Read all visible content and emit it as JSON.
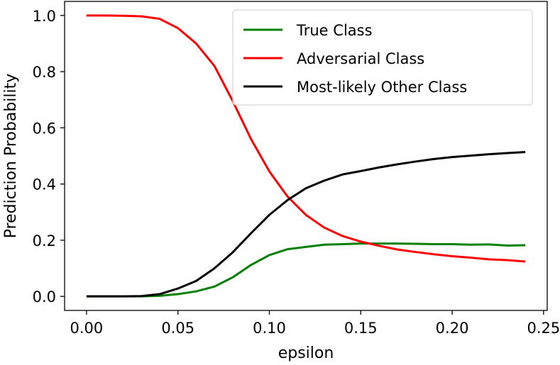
{
  "chart_data": {
    "type": "line",
    "title": "",
    "xlabel": "epsilon",
    "ylabel": "Prediction Probability",
    "xlim": [
      -0.012,
      0.252
    ],
    "ylim": [
      -0.05,
      1.05
    ],
    "xticks": [
      0.0,
      0.05,
      0.1,
      0.15,
      0.2,
      0.25
    ],
    "xtick_labels": [
      "0.00",
      "0.05",
      "0.10",
      "0.15",
      "0.20",
      "0.25"
    ],
    "yticks": [
      0.0,
      0.2,
      0.4,
      0.6,
      0.8,
      1.0
    ],
    "ytick_labels": [
      "0.0",
      "0.2",
      "0.4",
      "0.6",
      "0.8",
      "1.0"
    ],
    "grid": false,
    "legend_position": "top-right",
    "x": [
      0.0,
      0.01,
      0.02,
      0.03,
      0.04,
      0.05,
      0.06,
      0.07,
      0.08,
      0.09,
      0.1,
      0.11,
      0.12,
      0.13,
      0.14,
      0.15,
      0.16,
      0.17,
      0.18,
      0.19,
      0.2,
      0.21,
      0.22,
      0.23,
      0.24
    ],
    "series": [
      {
        "name": "True Class",
        "color": "#008000",
        "values": [
          0.0,
          0.0,
          0.0,
          0.0,
          0.002,
          0.008,
          0.018,
          0.035,
          0.068,
          0.112,
          0.147,
          0.168,
          0.176,
          0.184,
          0.186,
          0.188,
          0.188,
          0.188,
          0.187,
          0.186,
          0.186,
          0.184,
          0.185,
          0.181,
          0.182
        ]
      },
      {
        "name": "Adversarial Class",
        "color": "#ff0000",
        "values": [
          1.0,
          1.0,
          0.999,
          0.997,
          0.988,
          0.955,
          0.9,
          0.82,
          0.695,
          0.56,
          0.445,
          0.355,
          0.29,
          0.245,
          0.215,
          0.195,
          0.18,
          0.167,
          0.158,
          0.15,
          0.143,
          0.138,
          0.132,
          0.129,
          0.124
        ]
      },
      {
        "name": "Most-likely Other Class",
        "color": "#000000",
        "values": [
          0.0,
          0.0,
          0.0,
          0.001,
          0.008,
          0.028,
          0.055,
          0.1,
          0.157,
          0.225,
          0.29,
          0.343,
          0.385,
          0.412,
          0.434,
          0.446,
          0.459,
          0.47,
          0.48,
          0.489,
          0.496,
          0.501,
          0.506,
          0.51,
          0.514
        ]
      }
    ]
  }
}
